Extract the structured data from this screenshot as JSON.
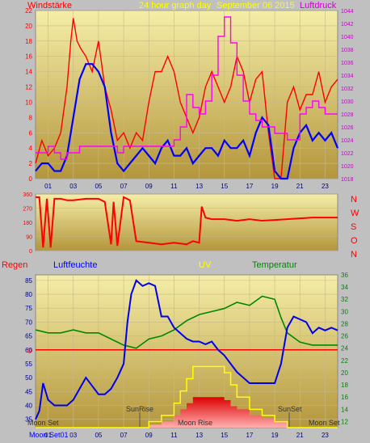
{
  "header": {
    "left_label": "Windstärke",
    "center_label": "24 hour graph day",
    "date_label": "September 06 2015",
    "right_label": "Luftdruck"
  },
  "bottom_header": {
    "regen": "Regen",
    "luftfeuchte": "Luftfeuchte",
    "uv": "UV",
    "temperatur": "Temperatur"
  },
  "compass": [
    "N",
    "W",
    "S",
    "O",
    "N"
  ],
  "colors": {
    "wind_gust": "#ff0000",
    "wind_avg": "#0000ff",
    "pressure": "#ff00ff",
    "humidity": "#0000ee",
    "temperature": "#008800",
    "uv": "#ffff00",
    "solar": "#ff0000",
    "plot_bg_top": "#f5eea8",
    "plot_bg_bottom": "#b4963c",
    "frame": "#c0c0c0",
    "label_red": "#ff0000",
    "label_magenta": "#cc00cc",
    "label_yellow": "#ffff00",
    "label_blue": "#0000ff",
    "label_green": "#008800"
  },
  "chart_data": [
    {
      "type": "line",
      "title": "24 hour graph day September 06 2015",
      "xlabel": "",
      "x_tick_labels": [
        "01",
        "03",
        "05",
        "07",
        "09",
        "11",
        "13",
        "15",
        "17",
        "19",
        "21",
        "23"
      ],
      "x_range": [
        0,
        24
      ],
      "left_axis": {
        "label": "Windstärke",
        "ylim": [
          0,
          22
        ],
        "ticks": [
          0,
          2,
          4,
          6,
          8,
          10,
          12,
          14,
          16,
          18,
          20,
          22
        ]
      },
      "right_axis": {
        "label": "Luftdruck",
        "ylim": [
          1018,
          1044
        ],
        "ticks": [
          1018,
          1020,
          1022,
          1024,
          1026,
          1028,
          1030,
          1032,
          1034,
          1036,
          1038,
          1040,
          1042,
          1044
        ]
      },
      "series": [
        {
          "name": "Windstärke",
          "axis": "left",
          "x": [
            0,
            0.5,
            1,
            1.5,
            2,
            2.5,
            2.8,
            3,
            3.3,
            3.6,
            4,
            4.5,
            5,
            5.5,
            6,
            6.5,
            7,
            7.5,
            8,
            8.5,
            9,
            9.5,
            10,
            10.5,
            11,
            11.5,
            12,
            12.5,
            13,
            13.5,
            14,
            14.5,
            15,
            15.5,
            16,
            16.5,
            17,
            17.5,
            18,
            18.5,
            19,
            19.5,
            20,
            20.5,
            21,
            21.5,
            22,
            22.5,
            23,
            23.5,
            24
          ],
          "y": [
            2,
            5,
            3,
            4,
            6,
            12,
            18,
            21,
            18,
            17,
            16,
            14,
            18,
            12,
            9,
            5,
            6,
            4,
            6,
            5,
            10,
            14,
            14,
            16,
            14,
            10,
            8,
            6,
            8,
            12,
            14,
            12,
            10,
            12,
            16,
            14,
            10,
            13,
            14,
            6,
            0,
            0,
            10,
            12,
            9,
            11,
            11,
            14,
            10,
            12,
            13
          ]
        },
        {
          "name": "Wind Mittel",
          "axis": "left",
          "x": [
            0,
            0.5,
            1,
            1.5,
            2,
            2.5,
            3,
            3.5,
            4,
            4.5,
            5,
            5.5,
            6,
            6.5,
            7,
            7.5,
            8,
            8.5,
            9,
            9.5,
            10,
            10.5,
            11,
            11.5,
            12,
            12.5,
            13,
            13.5,
            14,
            14.5,
            15,
            15.5,
            16,
            16.5,
            17,
            17.5,
            18,
            18.5,
            19,
            19.5,
            20,
            20.5,
            21,
            21.5,
            22,
            22.5,
            23,
            23.5,
            24
          ],
          "y": [
            1,
            2,
            2,
            1,
            1,
            3,
            8,
            13,
            15,
            15,
            14,
            12,
            6,
            2,
            1,
            2,
            3,
            4,
            3,
            2,
            4,
            5,
            3,
            3,
            4,
            2,
            3,
            4,
            4,
            3,
            5,
            4,
            4,
            5,
            3,
            6,
            8,
            7,
            1,
            0,
            0,
            4,
            6,
            7,
            5,
            6,
            5,
            6,
            4
          ]
        },
        {
          "name": "Luftdruck",
          "axis": "right",
          "x": [
            0,
            1,
            1.5,
            2,
            2.5,
            3,
            3.5,
            4,
            5,
            6,
            6.5,
            7,
            8,
            9,
            10,
            11,
            11.5,
            12,
            12.5,
            13,
            13.5,
            14,
            14.5,
            15,
            15.5,
            16,
            16.5,
            17,
            17.5,
            18,
            18.5,
            19,
            20,
            21,
            21.5,
            22,
            22.5,
            23,
            24
          ],
          "y": [
            1022,
            1023,
            1022,
            1021,
            1022,
            1022,
            1023,
            1023,
            1023,
            1023,
            1022,
            1023,
            1023,
            1023,
            1023,
            1024,
            1026,
            1031,
            1029,
            1028,
            1030,
            1034,
            1040,
            1043,
            1039,
            1034,
            1030,
            1028,
            1027,
            1026,
            1026,
            1025,
            1024,
            1028,
            1029,
            1030,
            1029,
            1028,
            1028
          ]
        }
      ]
    },
    {
      "type": "scatter",
      "title": "",
      "y_axis_label": "",
      "ylim": [
        0,
        360
      ],
      "y_ticks": [
        0,
        90,
        180,
        270,
        360
      ],
      "x_range": [
        0,
        24
      ],
      "series": [
        {
          "name": "",
          "x": [
            0,
            0.3,
            0.6,
            0.9,
            1.2,
            1.5,
            2,
            2.5,
            3,
            4,
            5,
            5.5,
            6,
            6.2,
            6.5,
            7,
            7.5,
            8,
            9,
            10,
            11,
            12,
            12.5,
            13,
            13.2,
            13.5,
            14,
            15,
            16,
            17,
            18,
            19,
            20,
            21,
            22,
            23,
            24
          ],
          "y": [
            340,
            340,
            20,
            330,
            20,
            330,
            330,
            320,
            320,
            330,
            330,
            310,
            40,
            310,
            30,
            340,
            320,
            60,
            50,
            40,
            50,
            40,
            60,
            50,
            280,
            210,
            200,
            200,
            190,
            200,
            190,
            195,
            200,
            205,
            210,
            210,
            210
          ]
        }
      ]
    },
    {
      "type": "line",
      "title": "",
      "xlabel": "",
      "x_tick_labels": [
        "01",
        "03",
        "05",
        "07",
        "09",
        "11",
        "13",
        "15",
        "17",
        "19",
        "21",
        "23"
      ],
      "x_range": [
        0,
        24
      ],
      "left_axis": {
        "label": "Luftfeuchte",
        "ylim": [
          32,
          87
        ],
        "ticks": [
          35,
          40,
          45,
          50,
          55,
          60,
          65,
          70,
          75,
          80,
          85
        ]
      },
      "right_axis": {
        "label": "Temperatur",
        "ylim": [
          11,
          36
        ],
        "ticks": [
          12,
          14,
          16,
          18,
          20,
          22,
          24,
          26,
          28,
          30,
          32,
          34,
          36
        ]
      },
      "rain_marker": "0",
      "annotations": [
        "Moon Set",
        "SunRise",
        "Moon Rise",
        "SunSet",
        "Moon Set",
        "Moon Set01"
      ],
      "series": [
        {
          "name": "Luftfeuchte",
          "axis": "left",
          "x": [
            0,
            0.3,
            0.6,
            1,
            1.5,
            2,
            2.5,
            3,
            3.5,
            4,
            4.5,
            5,
            5.5,
            6,
            6.5,
            7,
            7.3,
            7.6,
            8,
            8.5,
            9,
            9.5,
            10,
            10.5,
            11,
            11.5,
            12,
            12.5,
            13,
            13.5,
            14,
            14.5,
            15,
            15.5,
            16,
            16.5,
            17,
            17.5,
            18,
            18.5,
            19,
            19.5,
            20,
            20.5,
            21,
            21.5,
            22,
            22.5,
            23,
            23.5,
            24
          ],
          "y": [
            35,
            38,
            48,
            42,
            40,
            40,
            40,
            42,
            46,
            50,
            47,
            44,
            44,
            46,
            50,
            55,
            70,
            80,
            85,
            83,
            84,
            83,
            72,
            72,
            68,
            66,
            64,
            63,
            63,
            62,
            63,
            60,
            58,
            55,
            52,
            50,
            48,
            48,
            48,
            48,
            48,
            55,
            68,
            72,
            71,
            70,
            66,
            68,
            67,
            68,
            67
          ]
        },
        {
          "name": "Temperatur",
          "axis": "right",
          "x": [
            0,
            1,
            2,
            3,
            4,
            5,
            6,
            7,
            8,
            9,
            10,
            11,
            12,
            13,
            14,
            15,
            16,
            17,
            18,
            19,
            19.5,
            20,
            21,
            22,
            23,
            24
          ],
          "y": [
            27,
            26.5,
            26.5,
            27,
            26.5,
            26.5,
            25.5,
            24.5,
            24,
            25.5,
            26,
            27,
            28.5,
            29.5,
            30,
            30.5,
            31.5,
            31,
            32.5,
            32,
            29,
            26.5,
            25,
            24.5,
            24.5,
            24.5
          ]
        },
        {
          "name": "UV",
          "axis": "right",
          "x": [
            0,
            7,
            8,
            9,
            10,
            11,
            11.5,
            12,
            12.5,
            13,
            14,
            15,
            15.5,
            16,
            17,
            18,
            19,
            20,
            24
          ],
          "y": [
            11,
            11,
            11,
            12,
            13,
            15,
            17,
            19,
            21,
            21,
            21,
            20,
            18,
            16,
            14,
            13,
            12,
            11,
            11
          ]
        },
        {
          "name": "Solar",
          "axis": "right",
          "x": [
            0,
            7,
            8,
            9,
            10,
            11,
            11.5,
            12,
            12.5,
            13,
            14,
            15,
            15.5,
            16,
            17,
            18,
            19,
            20,
            24
          ],
          "y": [
            11,
            11,
            11,
            11.5,
            12,
            13,
            14,
            15,
            16,
            16,
            16,
            15.5,
            14.5,
            14,
            13,
            12.5,
            12,
            11,
            11
          ]
        }
      ]
    }
  ]
}
